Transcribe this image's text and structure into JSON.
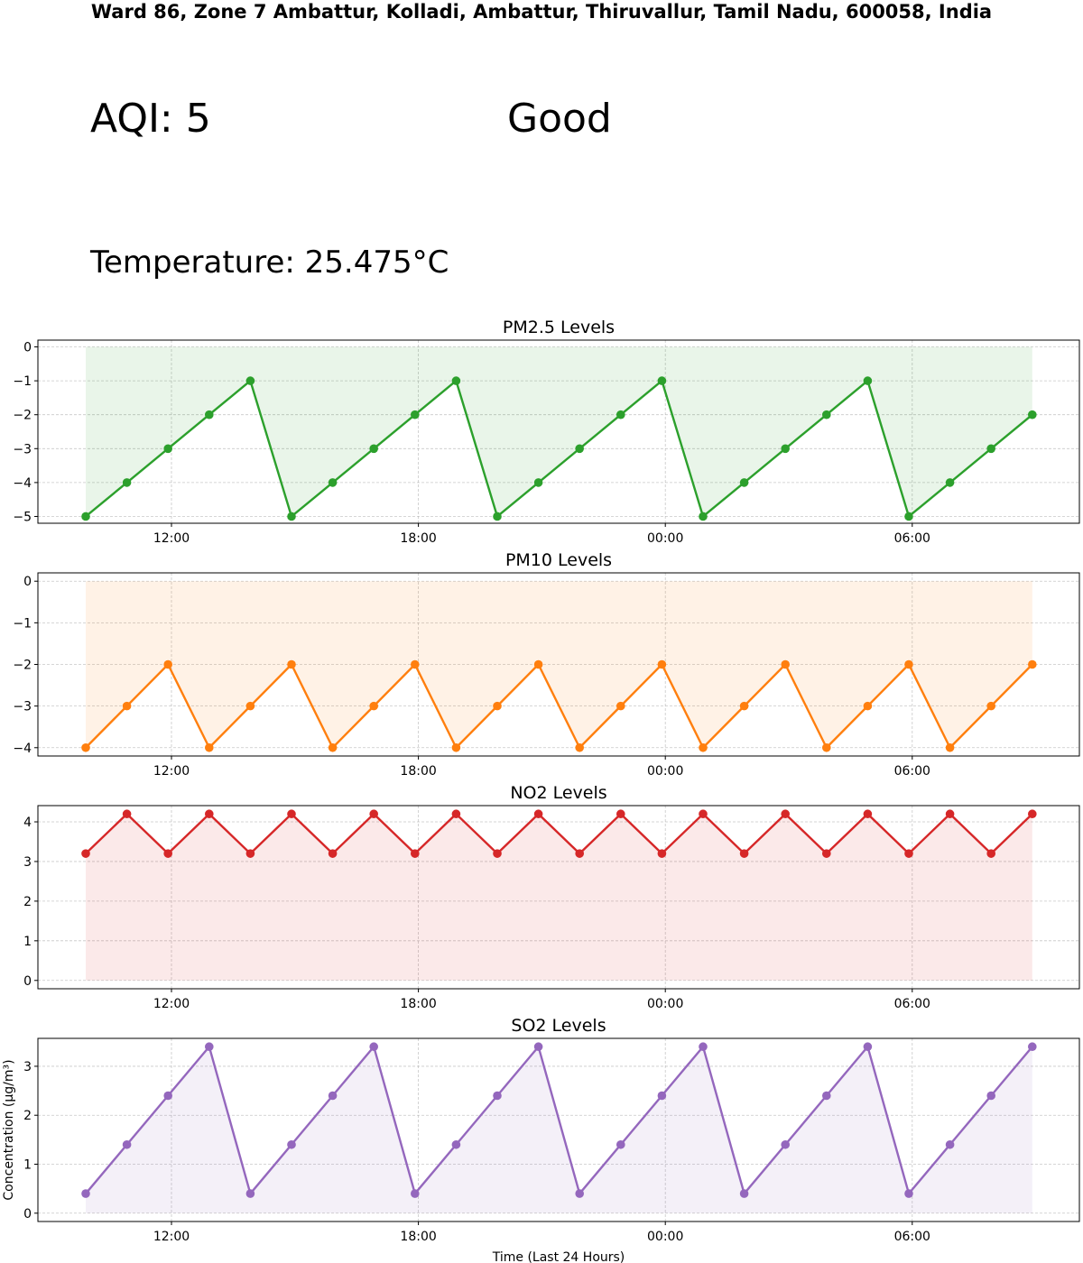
{
  "header": {
    "location": "Ward 86, Zone 7 Ambattur, Kolladi, Ambattur, Thiruvallur, Tamil Nadu, 600058, India",
    "aqi_text": "AQI: 5",
    "aqi_emoji": "",
    "aqi_status": "Good",
    "temperature_text": "Temperature: 25.475°C"
  },
  "chart_data": [
    {
      "type": "line",
      "title": "PM2.5 Levels",
      "color": "#2ca02c",
      "fill_color": "#2ca02c",
      "fill": "to zero",
      "x_hours": [
        0,
        1,
        2,
        3,
        4,
        5,
        6,
        7,
        8,
        9,
        10,
        11,
        12,
        13,
        14,
        15,
        16,
        17,
        18,
        19,
        20,
        21,
        22,
        23
      ],
      "x_start": "09:55",
      "x_ticks": [
        "12:00",
        "18:00",
        "00:00",
        "06:00"
      ],
      "values": [
        -5,
        -4,
        -3,
        -2,
        -1,
        -5,
        -4,
        -3,
        -2,
        -1,
        -5,
        -4,
        -3,
        -2,
        -1,
        -5,
        -4,
        -3,
        -2,
        -1,
        -5,
        -4,
        -3,
        -2
      ],
      "ylim": [
        -5.2,
        0.2
      ],
      "y_ticks": [
        0,
        -1,
        -2,
        -3,
        -4,
        -5
      ],
      "xlabel": "",
      "ylabel": "",
      "grid": true
    },
    {
      "type": "line",
      "title": "PM10 Levels",
      "color": "#ff7f0e",
      "fill_color": "#ff7f0e",
      "fill": "to zero",
      "x_hours": [
        0,
        1,
        2,
        3,
        4,
        5,
        6,
        7,
        8,
        9,
        10,
        11,
        12,
        13,
        14,
        15,
        16,
        17,
        18,
        19,
        20,
        21,
        22,
        23
      ],
      "x_start": "09:55",
      "x_ticks": [
        "12:00",
        "18:00",
        "00:00",
        "06:00"
      ],
      "values": [
        -4,
        -3,
        -2,
        -4,
        -3,
        -2,
        -4,
        -3,
        -2,
        -4,
        -3,
        -2,
        -4,
        -3,
        -2,
        -4,
        -3,
        -2,
        -4,
        -3,
        -2,
        -4,
        -3,
        -2
      ],
      "ylim": [
        -4.2,
        0.2
      ],
      "y_ticks": [
        0,
        -1,
        -2,
        -3,
        -4
      ],
      "xlabel": "",
      "ylabel": "",
      "grid": true
    },
    {
      "type": "line",
      "title": "NO2 Levels",
      "color": "#d62728",
      "fill_color": "#d62728",
      "fill": "to zero",
      "x_hours": [
        0,
        1,
        2,
        3,
        4,
        5,
        6,
        7,
        8,
        9,
        10,
        11,
        12,
        13,
        14,
        15,
        16,
        17,
        18,
        19,
        20,
        21,
        22,
        23
      ],
      "x_start": "09:55",
      "x_ticks": [
        "12:00",
        "18:00",
        "00:00",
        "06:00"
      ],
      "values": [
        3.2,
        4.2,
        3.2,
        4.2,
        3.2,
        4.2,
        3.2,
        4.2,
        3.2,
        4.2,
        3.2,
        4.2,
        3.2,
        4.2,
        3.2,
        4.2,
        3.2,
        4.2,
        3.2,
        4.2,
        3.2,
        4.2,
        3.2,
        4.2
      ],
      "ylim": [
        -0.21,
        4.41
      ],
      "y_ticks": [
        0,
        1,
        2,
        3,
        4
      ],
      "xlabel": "",
      "ylabel": "",
      "grid": true
    },
    {
      "type": "line",
      "title": "SO2 Levels",
      "color": "#9467bd",
      "fill_color": "#9467bd",
      "fill": "to zero",
      "x_hours": [
        0,
        1,
        2,
        3,
        4,
        5,
        6,
        7,
        8,
        9,
        10,
        11,
        12,
        13,
        14,
        15,
        16,
        17,
        18,
        19,
        20,
        21,
        22,
        23
      ],
      "x_start": "09:55",
      "x_ticks": [
        "12:00",
        "18:00",
        "00:00",
        "06:00"
      ],
      "values": [
        0.4,
        1.4,
        2.4,
        3.4,
        0.4,
        1.4,
        2.4,
        3.4,
        0.4,
        1.4,
        2.4,
        3.4,
        0.4,
        1.4,
        2.4,
        3.4,
        0.4,
        1.4,
        2.4,
        3.4,
        0.4,
        1.4,
        2.4,
        3.4
      ],
      "ylim": [
        -0.17,
        3.57
      ],
      "y_ticks": [
        0,
        1,
        2,
        3
      ],
      "xlabel": "Time (Last 24 Hours)",
      "ylabel": "Concentration (µg/m³)",
      "grid": true
    }
  ]
}
